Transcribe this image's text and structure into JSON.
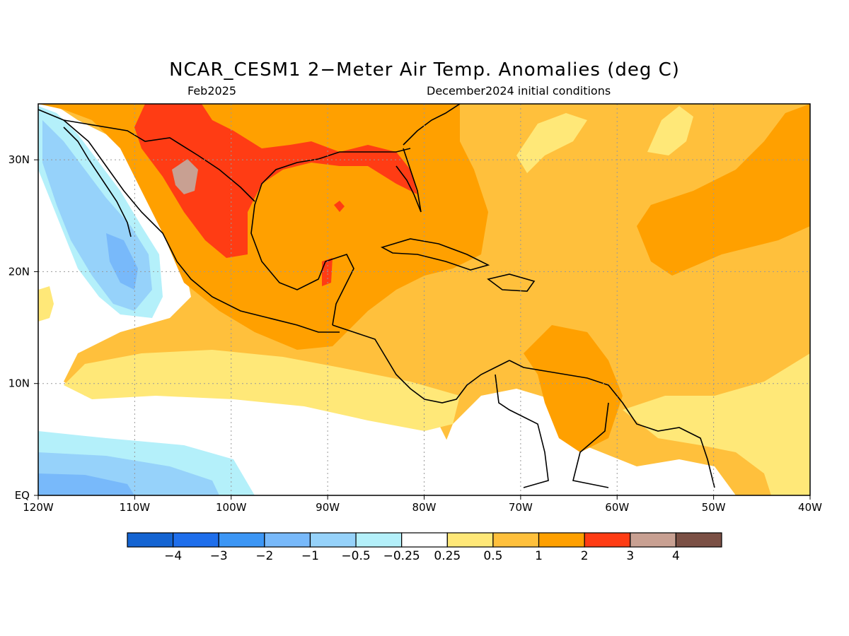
{
  "title": "NCAR_CESM1 2−Meter Air Temp. Anomalies (deg C)",
  "subtitle_left": "Feb2025",
  "subtitle_right": "December2024 initial conditions",
  "map": {
    "projection": "lat-lon",
    "lon_range": [
      -120,
      -40
    ],
    "lat_range": [
      0,
      35
    ],
    "lon_ticks": [
      {
        "value": -120,
        "label": "120W"
      },
      {
        "value": -110,
        "label": "110W"
      },
      {
        "value": -100,
        "label": "100W"
      },
      {
        "value": -90,
        "label": "90W"
      },
      {
        "value": -80,
        "label": "80W"
      },
      {
        "value": -70,
        "label": "70W"
      },
      {
        "value": -60,
        "label": "60W"
      },
      {
        "value": -50,
        "label": "50W"
      },
      {
        "value": -40,
        "label": "40W"
      }
    ],
    "lat_ticks": [
      {
        "value": 0,
        "label": "EQ"
      },
      {
        "value": 10,
        "label": "10N"
      },
      {
        "value": 20,
        "label": "20N"
      },
      {
        "value": 30,
        "label": "30N"
      }
    ],
    "grid": "dotted"
  },
  "colorbar": {
    "colors": [
      "#1464d2",
      "#1e6eeb",
      "#3c96f5",
      "#78b9fa",
      "#96d2fa",
      "#b4f0fa",
      "#ffffff",
      "#ffe878",
      "#ffc03c",
      "#ffa000",
      "#ff3c14",
      "#c8a092",
      "#7b5045"
    ],
    "labels": [
      "−4",
      "−3",
      "−2",
      "−1",
      "−0.5",
      "−0.25",
      "0.25",
      "0.5",
      "1",
      "2",
      "3",
      "4"
    ]
  },
  "colors": {
    "land_outline": "#000000",
    "very_warm": "#ff3c14",
    "warm": "#ffa000",
    "mild_warm": "#ffc03c",
    "slight_warm": "#ffe878",
    "neutral": "#ffffff",
    "slight_cool": "#b4f0fa",
    "cool": "#96d2fa",
    "cooler": "#78b9fa",
    "extreme": "#c8a092"
  }
}
